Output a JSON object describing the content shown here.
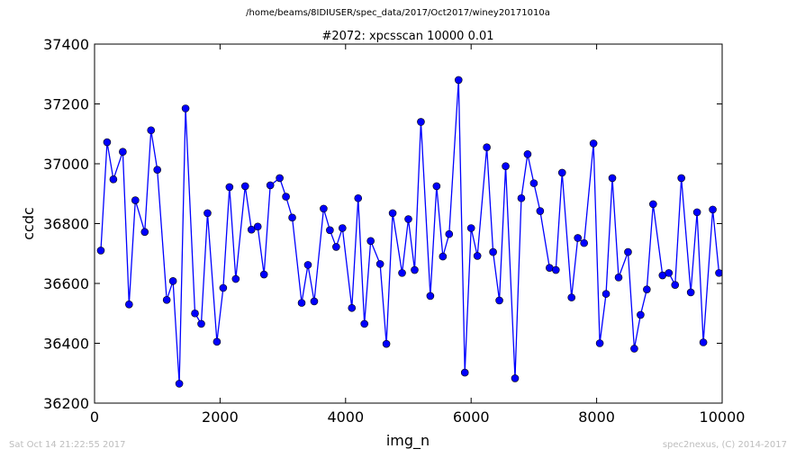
{
  "figure": {
    "suptitle": "/home/beams/8IDIUSER/spec_data/2017/Oct2017/winey20171010a",
    "footer_left": "Sat Oct 14 21:22:55 2017",
    "footer_right": "spec2nexus, (C) 2014-2017"
  },
  "chart_data": {
    "type": "line",
    "title": "#2072: xpcsscan 10000 0.01",
    "xlabel": "img_n",
    "ylabel": "ccdc",
    "xlim": [
      0,
      10000
    ],
    "ylim": [
      36200,
      37400
    ],
    "xticks": [
      0,
      2000,
      4000,
      6000,
      8000,
      10000
    ],
    "yticks": [
      36200,
      36400,
      36600,
      36800,
      37000,
      37200,
      37400
    ],
    "grid": false,
    "series": [
      {
        "color": "#0000ff",
        "marker": "circle",
        "points": [
          [
            100,
            36710
          ],
          [
            200,
            37072
          ],
          [
            300,
            36948
          ],
          [
            450,
            37040
          ],
          [
            550,
            36530
          ],
          [
            650,
            36878
          ],
          [
            800,
            36772
          ],
          [
            900,
            37112
          ],
          [
            1000,
            36980
          ],
          [
            1150,
            36545
          ],
          [
            1250,
            36608
          ],
          [
            1350,
            36265
          ],
          [
            1450,
            37185
          ],
          [
            1600,
            36500
          ],
          [
            1700,
            36465
          ],
          [
            1800,
            36835
          ],
          [
            1950,
            36405
          ],
          [
            2050,
            36585
          ],
          [
            2150,
            36922
          ],
          [
            2250,
            36615
          ],
          [
            2400,
            36925
          ],
          [
            2500,
            36780
          ],
          [
            2600,
            36790
          ],
          [
            2700,
            36630
          ],
          [
            2800,
            36928
          ],
          [
            2950,
            36952
          ],
          [
            3050,
            36890
          ],
          [
            3150,
            36820
          ],
          [
            3300,
            36535
          ],
          [
            3400,
            36662
          ],
          [
            3500,
            36540
          ],
          [
            3650,
            36850
          ],
          [
            3750,
            36778
          ],
          [
            3850,
            36722
          ],
          [
            3950,
            36785
          ],
          [
            4100,
            36518
          ],
          [
            4200,
            36885
          ],
          [
            4300,
            36465
          ],
          [
            4400,
            36742
          ],
          [
            4550,
            36665
          ],
          [
            4650,
            36398
          ],
          [
            4750,
            36835
          ],
          [
            4900,
            36635
          ],
          [
            5000,
            36815
          ],
          [
            5100,
            36645
          ],
          [
            5200,
            37140
          ],
          [
            5350,
            36558
          ],
          [
            5450,
            36925
          ],
          [
            5550,
            36690
          ],
          [
            5650,
            36765
          ],
          [
            5800,
            37280
          ],
          [
            5900,
            36302
          ],
          [
            6000,
            36785
          ],
          [
            6100,
            36692
          ],
          [
            6250,
            37055
          ],
          [
            6350,
            36705
          ],
          [
            6450,
            36543
          ],
          [
            6550,
            36992
          ],
          [
            6700,
            36283
          ],
          [
            6800,
            36885
          ],
          [
            6900,
            37032
          ],
          [
            7000,
            36935
          ],
          [
            7100,
            36842
          ],
          [
            7250,
            36652
          ],
          [
            7350,
            36645
          ],
          [
            7450,
            36970
          ],
          [
            7600,
            36553
          ],
          [
            7700,
            36752
          ],
          [
            7800,
            36735
          ],
          [
            7950,
            37068
          ],
          [
            8050,
            36400
          ],
          [
            8150,
            36565
          ],
          [
            8250,
            36952
          ],
          [
            8350,
            36620
          ],
          [
            8500,
            36705
          ],
          [
            8600,
            36382
          ],
          [
            8700,
            36495
          ],
          [
            8800,
            36580
          ],
          [
            8900,
            36865
          ],
          [
            9050,
            36627
          ],
          [
            9150,
            36635
          ],
          [
            9250,
            36595
          ],
          [
            9350,
            36952
          ],
          [
            9500,
            36570
          ],
          [
            9600,
            36838
          ],
          [
            9700,
            36403
          ],
          [
            9850,
            36847
          ],
          [
            9950,
            36635
          ]
        ]
      }
    ]
  }
}
